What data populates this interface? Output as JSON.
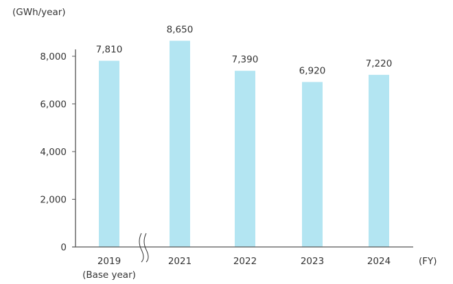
{
  "chart_data": {
    "type": "bar",
    "title": "",
    "ylabel": "(GWh/year)",
    "xlabel": "(FY)",
    "categories": [
      "2019",
      "2021",
      "2022",
      "2023",
      "2024"
    ],
    "category_sublabels": [
      "(Base year)",
      "",
      "",
      "",
      ""
    ],
    "values": [
      7810,
      8650,
      7390,
      6920,
      7220
    ],
    "data_labels": [
      "7,810",
      "8,650",
      "7,390",
      "6,920",
      "7,220"
    ],
    "ylim": [
      0,
      8000
    ],
    "yticks": [
      0,
      2000,
      4000,
      6000,
      8000
    ],
    "ytick_labels": [
      "0",
      "2,000",
      "4,000",
      "6,000",
      "8,000"
    ],
    "axis_break_between": [
      "2019",
      "2021"
    ],
    "grid": false,
    "bar_color": "#b3e5f2",
    "axis_color": "#555555"
  }
}
